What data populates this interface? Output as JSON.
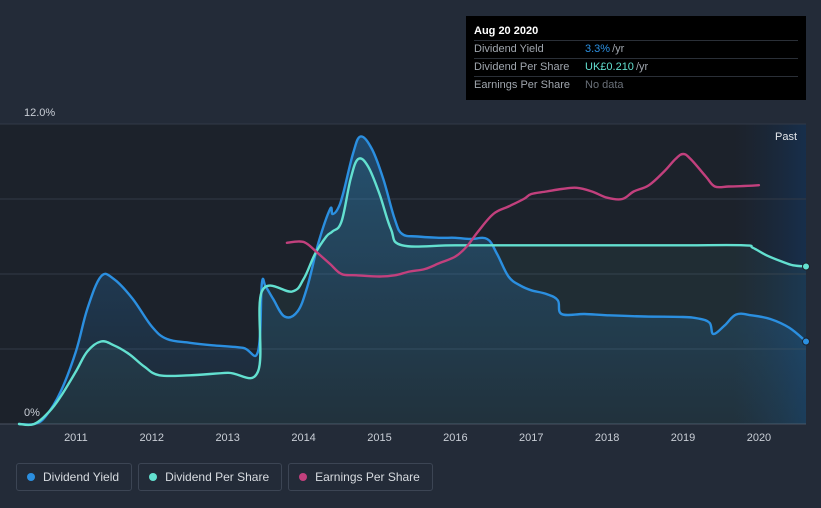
{
  "chart_data": {
    "type": "line",
    "y_top_label": "12.0%",
    "y_bottom_label": "0%",
    "ylim": [
      0,
      12
    ],
    "xlim": [
      2010.0,
      2020.62
    ],
    "x_ticks": [
      {
        "label": "2011",
        "x": 2011
      },
      {
        "label": "2012",
        "x": 2012
      },
      {
        "label": "2013",
        "x": 2013
      },
      {
        "label": "2014",
        "x": 2014
      },
      {
        "label": "2015",
        "x": 2015
      },
      {
        "label": "2016",
        "x": 2016
      },
      {
        "label": "2017",
        "x": 2017
      },
      {
        "label": "2018",
        "x": 2018
      },
      {
        "label": "2019",
        "x": 2019
      },
      {
        "label": "2020",
        "x": 2020
      }
    ],
    "past_label": "Past",
    "past_region_start": 2019.67,
    "series": [
      {
        "name": "Dividend Yield",
        "color": "#2b8fe0",
        "points": [
          [
            2010.25,
            0
          ],
          [
            2010.45,
            0
          ],
          [
            2010.6,
            0.3
          ],
          [
            2010.8,
            1.3
          ],
          [
            2011.0,
            2.9
          ],
          [
            2011.15,
            4.6
          ],
          [
            2011.33,
            5.9
          ],
          [
            2011.5,
            5.8
          ],
          [
            2011.75,
            5.0
          ],
          [
            2012.0,
            3.9
          ],
          [
            2012.2,
            3.4
          ],
          [
            2012.5,
            3.25
          ],
          [
            2012.8,
            3.15
          ],
          [
            2013.2,
            3.05
          ],
          [
            2013.4,
            2.9
          ],
          [
            2013.45,
            5.6
          ],
          [
            2013.5,
            5.5
          ],
          [
            2013.6,
            5.0
          ],
          [
            2013.75,
            4.3
          ],
          [
            2013.92,
            4.5
          ],
          [
            2014.05,
            5.5
          ],
          [
            2014.2,
            7.3
          ],
          [
            2014.35,
            8.6
          ],
          [
            2014.38,
            8.4
          ],
          [
            2014.45,
            8.6
          ],
          [
            2014.52,
            9.2
          ],
          [
            2014.65,
            10.8
          ],
          [
            2014.75,
            11.5
          ],
          [
            2014.9,
            11.0
          ],
          [
            2015.05,
            9.8
          ],
          [
            2015.2,
            8.2
          ],
          [
            2015.3,
            7.6
          ],
          [
            2015.5,
            7.5
          ],
          [
            2015.8,
            7.45
          ],
          [
            2016.0,
            7.45
          ],
          [
            2016.2,
            7.4
          ],
          [
            2016.42,
            7.4
          ],
          [
            2016.55,
            6.8
          ],
          [
            2016.7,
            5.9
          ],
          [
            2016.85,
            5.55
          ],
          [
            2017.0,
            5.35
          ],
          [
            2017.2,
            5.2
          ],
          [
            2017.35,
            4.95
          ],
          [
            2017.4,
            4.4
          ],
          [
            2017.7,
            4.4
          ],
          [
            2018.0,
            4.35
          ],
          [
            2018.5,
            4.3
          ],
          [
            2019.0,
            4.28
          ],
          [
            2019.2,
            4.22
          ],
          [
            2019.35,
            4.05
          ],
          [
            2019.4,
            3.6
          ],
          [
            2019.55,
            3.95
          ],
          [
            2019.7,
            4.38
          ],
          [
            2019.9,
            4.35
          ],
          [
            2020.15,
            4.2
          ],
          [
            2020.4,
            3.85
          ],
          [
            2020.62,
            3.3
          ]
        ]
      },
      {
        "name": "Dividend Per Share",
        "color": "#63e0d0",
        "points": [
          [
            2010.25,
            0
          ],
          [
            2010.45,
            0
          ],
          [
            2010.65,
            0.5
          ],
          [
            2010.8,
            1.1
          ],
          [
            2011.0,
            2.1
          ],
          [
            2011.15,
            2.9
          ],
          [
            2011.33,
            3.3
          ],
          [
            2011.5,
            3.15
          ],
          [
            2011.7,
            2.8
          ],
          [
            2011.9,
            2.3
          ],
          [
            2012.1,
            1.95
          ],
          [
            2012.5,
            1.95
          ],
          [
            2013.0,
            2.05
          ],
          [
            2013.4,
            2.1
          ],
          [
            2013.45,
            5.3
          ],
          [
            2013.85,
            5.3
          ],
          [
            2014.0,
            5.8
          ],
          [
            2014.15,
            6.8
          ],
          [
            2014.3,
            7.5
          ],
          [
            2014.38,
            7.7
          ],
          [
            2014.5,
            8.1
          ],
          [
            2014.62,
            9.8
          ],
          [
            2014.72,
            10.6
          ],
          [
            2014.85,
            10.3
          ],
          [
            2015.0,
            9.2
          ],
          [
            2015.15,
            7.8
          ],
          [
            2015.3,
            7.15
          ],
          [
            2016.0,
            7.15
          ],
          [
            2017.0,
            7.15
          ],
          [
            2018.0,
            7.15
          ],
          [
            2019.0,
            7.15
          ],
          [
            2019.8,
            7.15
          ],
          [
            2019.92,
            7.05
          ],
          [
            2020.1,
            6.75
          ],
          [
            2020.3,
            6.5
          ],
          [
            2020.45,
            6.35
          ],
          [
            2020.62,
            6.3
          ]
        ]
      },
      {
        "name": "Earnings Per Share",
        "color": "#c2407d",
        "points": [
          [
            2013.78,
            7.25
          ],
          [
            2013.95,
            7.3
          ],
          [
            2014.05,
            7.2
          ],
          [
            2014.2,
            6.8
          ],
          [
            2014.35,
            6.4
          ],
          [
            2014.5,
            6.0
          ],
          [
            2014.7,
            5.95
          ],
          [
            2015.0,
            5.9
          ],
          [
            2015.2,
            5.95
          ],
          [
            2015.4,
            6.1
          ],
          [
            2015.6,
            6.2
          ],
          [
            2015.8,
            6.45
          ],
          [
            2016.0,
            6.7
          ],
          [
            2016.15,
            7.1
          ],
          [
            2016.3,
            7.7
          ],
          [
            2016.5,
            8.4
          ],
          [
            2016.7,
            8.7
          ],
          [
            2016.9,
            9.0
          ],
          [
            2017.0,
            9.2
          ],
          [
            2017.2,
            9.3
          ],
          [
            2017.4,
            9.4
          ],
          [
            2017.6,
            9.45
          ],
          [
            2017.8,
            9.3
          ],
          [
            2018.0,
            9.05
          ],
          [
            2018.2,
            9.0
          ],
          [
            2018.35,
            9.3
          ],
          [
            2018.55,
            9.55
          ],
          [
            2018.75,
            10.1
          ],
          [
            2018.9,
            10.6
          ],
          [
            2019.0,
            10.8
          ],
          [
            2019.1,
            10.6
          ],
          [
            2019.3,
            9.9
          ],
          [
            2019.42,
            9.5
          ],
          [
            2019.6,
            9.5
          ],
          [
            2019.8,
            9.52
          ],
          [
            2020.0,
            9.55
          ]
        ]
      }
    ]
  },
  "tooltip": {
    "date": "Aug 20 2020",
    "rows": [
      {
        "label": "Dividend Yield",
        "value": "3.3%",
        "unit": "/yr",
        "color": "#2b8fe0"
      },
      {
        "label": "Dividend Per Share",
        "value": "UK£0.210",
        "unit": "/yr",
        "color": "#63e0d0"
      },
      {
        "label": "Earnings Per Share",
        "value": "No data",
        "unit": "",
        "color": "#6a7079"
      }
    ]
  },
  "legend": [
    {
      "label": "Dividend Yield",
      "color": "#2b8fe0"
    },
    {
      "label": "Dividend Per Share",
      "color": "#63e0d0"
    },
    {
      "label": "Earnings Per Share",
      "color": "#c2407d"
    }
  ]
}
